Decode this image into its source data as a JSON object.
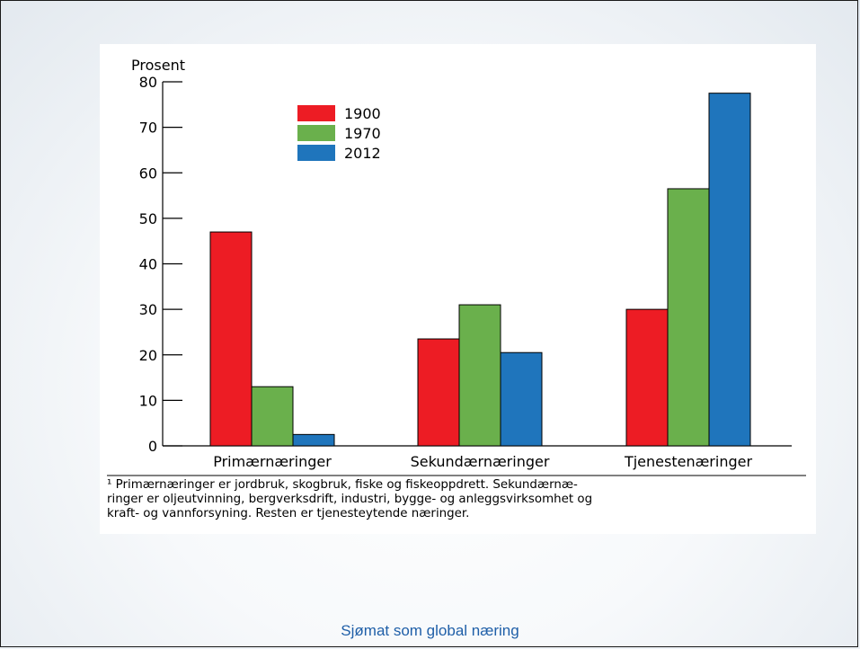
{
  "chart_data": {
    "type": "bar",
    "ylabel": "Prosent",
    "ylim": [
      0,
      80
    ],
    "yticks": [
      0,
      10,
      20,
      30,
      40,
      50,
      60,
      70,
      80
    ],
    "categories": [
      "Primærnæringer",
      "Sekundærnæringer",
      "Tjenestenæringer"
    ],
    "series": [
      {
        "name": "1900",
        "color": "#ed1c24",
        "values": [
          47,
          23.5,
          30
        ]
      },
      {
        "name": "1970",
        "color": "#6ab04c",
        "values": [
          13,
          31,
          56.5
        ]
      },
      {
        "name": "2012",
        "color": "#1f75bc",
        "values": [
          2.5,
          20.5,
          77.5
        ]
      }
    ],
    "grid": false,
    "legend": "top-left"
  },
  "footnote": {
    "lines": [
      "¹ Primærnæringer er jordbruk, skogbruk, fiske og fiskeoppdrett. Sekundærnæ-",
      "ringer er oljeutvinning, bergverksdrift, industri, bygge- og anleggsvirksomhet og",
      "kraft- og vannforsyning. Resten er tjenesteytende næringer."
    ]
  },
  "footer": {
    "text": "Sjømat som global næring"
  }
}
